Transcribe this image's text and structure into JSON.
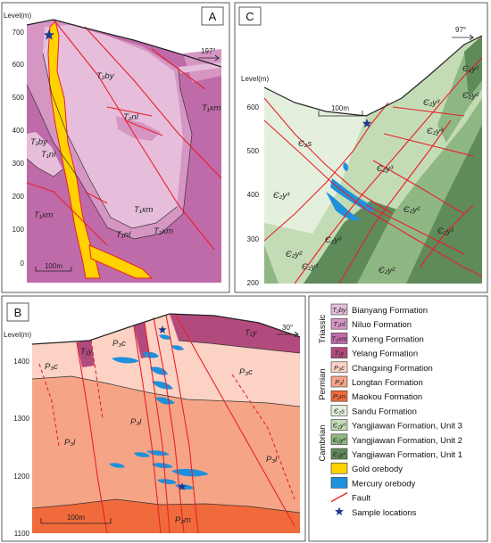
{
  "panels": {
    "a": {
      "letter": "A",
      "level_label": "Level(m)",
      "ticks": [
        "700",
        "600",
        "500",
        "400",
        "300",
        "200",
        "100",
        "0"
      ],
      "direction": "197°",
      "scale": "100m",
      "units": [
        {
          "sym": "T₂by"
        },
        {
          "sym": "T₂nl"
        },
        {
          "sym": "T₁by"
        },
        {
          "sym": "T₁nl"
        },
        {
          "sym": "T₁xm"
        },
        {
          "sym": "T₁xm"
        },
        {
          "sym": "T₂xm"
        },
        {
          "sym": "T₁nl"
        },
        {
          "sym": "T₁xm"
        }
      ]
    },
    "b": {
      "letter": "B",
      "level_label": "Level(m)",
      "ticks": [
        "1400",
        "1300",
        "1200",
        "1100"
      ],
      "direction": "30°",
      "scale": "100m",
      "units": [
        {
          "sym": "T₁y"
        },
        {
          "sym": "P₃c"
        },
        {
          "sym": "T₁y"
        },
        {
          "sym": "P₃c"
        },
        {
          "sym": "P₃c"
        },
        {
          "sym": "P₃l"
        },
        {
          "sym": "P₃l"
        },
        {
          "sym": "P₃l"
        },
        {
          "sym": "P₂m"
        }
      ]
    },
    "c": {
      "letter": "C",
      "level_label": "Level(m)",
      "ticks": [
        "600",
        "500",
        "400",
        "300",
        "200"
      ],
      "direction": "97°",
      "scale": "100m",
      "units": [
        {
          "sym": "Є₂s"
        },
        {
          "sym": "Є₂y³"
        },
        {
          "sym": "Є₂y³"
        },
        {
          "sym": "Є₂y³"
        },
        {
          "sym": "Є₂y³"
        },
        {
          "sym": "Є₂y³"
        },
        {
          "sym": "Є₂y²"
        },
        {
          "sym": "Є₂y²"
        },
        {
          "sym": "Є₂y¹"
        },
        {
          "sym": "Є₂y²"
        },
        {
          "sym": "Є₂y²"
        },
        {
          "sym": "Є₂y¹"
        },
        {
          "sym": "Є₂y¹"
        }
      ]
    }
  },
  "legend": {
    "eras": {
      "triassic": "Triassic",
      "permian": "Permian",
      "cambrian": "Cambrian"
    },
    "items": [
      {
        "sym": "T₂by",
        "label": "Bianyang Formation",
        "color": "#e6bedb"
      },
      {
        "sym": "T₂nl",
        "label": "Niluo Formation",
        "color": "#d596c4"
      },
      {
        "sym": "T₂xm",
        "label": "Xumeng Formation",
        "color": "#c06ba9"
      },
      {
        "sym": "T₁y",
        "label": "Yelang Formation",
        "color": "#b34a7d"
      },
      {
        "sym": "P₃c",
        "label": "Changxing Formation",
        "color": "#fbd2c4"
      },
      {
        "sym": "P₃l",
        "label": "Longtan Formation",
        "color": "#f5a586"
      },
      {
        "sym": "P₂m",
        "label": "Maokou Formation",
        "color": "#f16a3c"
      },
      {
        "sym": "Є₂s",
        "label": "Sandu Formation",
        "color": "#e4f0dd"
      },
      {
        "sym": "Є₂y³",
        "label": "Yangjiawan Formation, Unit 3",
        "color": "#c4dcb5"
      },
      {
        "sym": "Є₂y²",
        "label": "Yangjiawan Formation, Unit 2",
        "color": "#8fb784"
      },
      {
        "sym": "Є₂y¹",
        "label": "Yangjiawan Formation, Unit 1",
        "color": "#5f8a5a"
      },
      {
        "sym": "",
        "label": "Gold orebody",
        "color": "#ffd200"
      },
      {
        "sym": "",
        "label": "Mercury orebody",
        "color": "#1e90dc"
      },
      {
        "sym": "",
        "label": "Fault",
        "color": "#e8202a"
      },
      {
        "sym": "",
        "label": "Sample locations",
        "color": "#1a3a8c"
      }
    ]
  }
}
